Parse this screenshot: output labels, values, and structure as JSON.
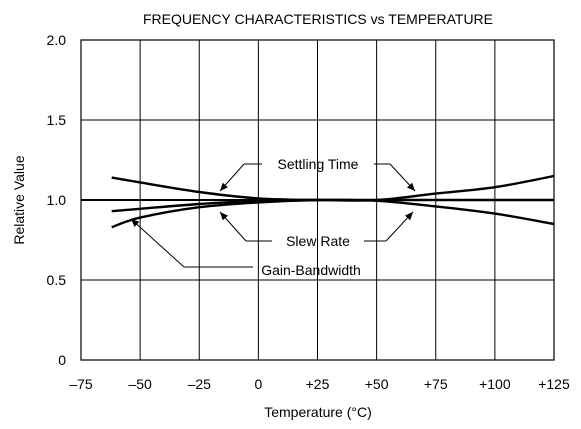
{
  "chart_data": {
    "type": "line",
    "title": "FREQUENCY CHARACTERISTICS vs TEMPERATURE",
    "xlabel": "Temperature (°C)",
    "ylabel": "Relative Value",
    "xlim": [
      -75,
      125
    ],
    "ylim": [
      0,
      2.0
    ],
    "x_ticks": [
      -75,
      -50,
      -25,
      0,
      25,
      50,
      75,
      100,
      125
    ],
    "x_tick_labels": [
      "–75",
      "–50",
      "–25",
      "0",
      "+25",
      "+50",
      "+75",
      "+100",
      "+125"
    ],
    "y_ticks": [
      0,
      0.5,
      1.0,
      1.5,
      2.0
    ],
    "y_tick_labels": [
      "0",
      "0.5",
      "1.0",
      "1.5",
      "2.0"
    ],
    "grid": true,
    "series": [
      {
        "name": "Settling Time",
        "x": [
          -62,
          -50,
          -25,
          0,
          25,
          50,
          75,
          100,
          125
        ],
        "y": [
          1.14,
          1.11,
          1.05,
          1.01,
          1.0,
          1.0,
          1.04,
          1.08,
          1.15
        ]
      },
      {
        "name": "Slew Rate",
        "x": [
          -62,
          -50,
          -25,
          0,
          25,
          50,
          75,
          100,
          125
        ],
        "y": [
          0.93,
          0.945,
          0.975,
          0.995,
          1.0,
          0.995,
          0.96,
          0.915,
          0.85
        ]
      },
      {
        "name": "Gain-Bandwidth",
        "x": [
          -62,
          -50,
          -25,
          0,
          25,
          50,
          75,
          100,
          125
        ],
        "y": [
          0.83,
          0.89,
          0.955,
          0.985,
          1.0,
          1.0,
          1.0,
          1.0,
          1.0
        ]
      }
    ],
    "reference_line": 1.0,
    "annotations": [
      {
        "text": "Settling Time",
        "series": "Settling Time"
      },
      {
        "text": "Slew Rate",
        "series": "Slew Rate"
      },
      {
        "text": "Gain-Bandwidth",
        "series": "Gain-Bandwidth"
      }
    ]
  }
}
